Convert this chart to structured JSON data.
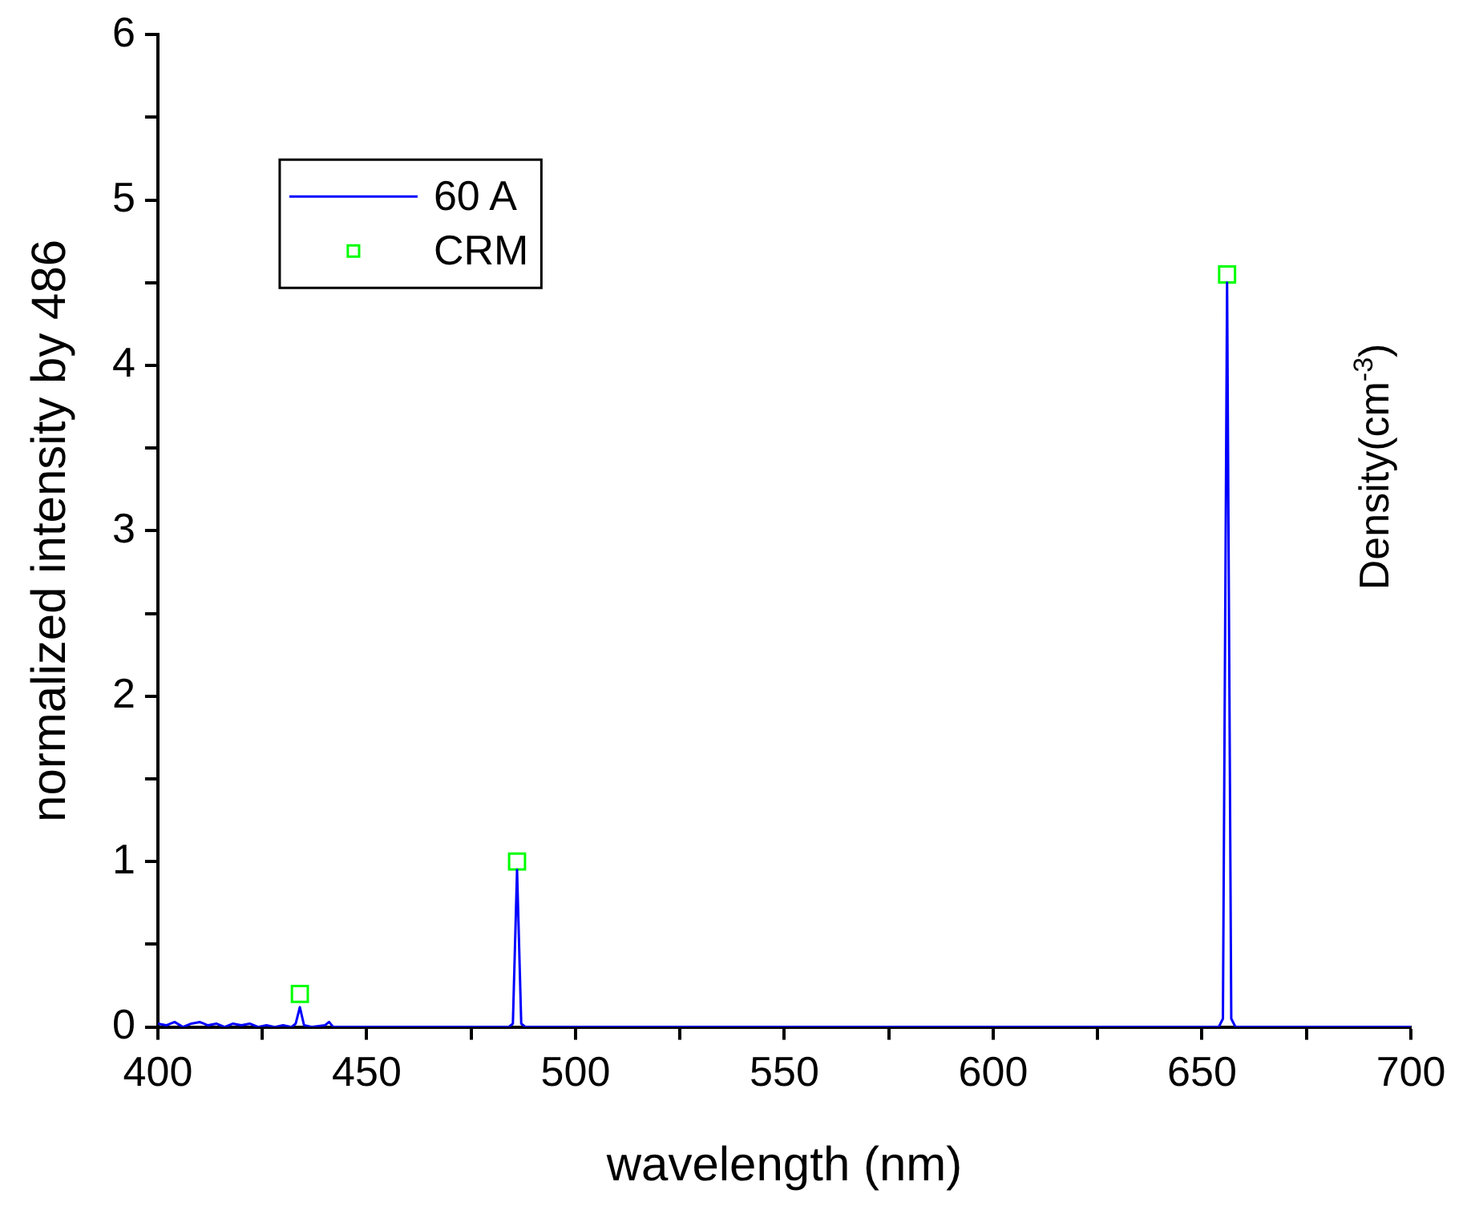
{
  "chart_data": {
    "type": "line",
    "xlabel": "wavelength (nm)",
    "ylabel": "normalized intensity by 486",
    "y2label": "Density(cm$^{-3}$)",
    "xlim": [
      400,
      700
    ],
    "ylim": [
      0,
      6
    ],
    "xticks": [
      400,
      {
        "value": 425,
        "label": null
      },
      450,
      {
        "value": 475,
        "label": null
      },
      500,
      {
        "value": 525,
        "label": null
      },
      550,
      {
        "value": 575,
        "label": null
      },
      600,
      {
        "value": 625,
        "label": null
      },
      650,
      {
        "value": 675,
        "label": null
      },
      700
    ],
    "yticks": [
      0,
      {
        "value": 0.5,
        "label": null
      },
      1,
      {
        "value": 1.5,
        "label": null
      },
      2,
      {
        "value": 2.5,
        "label": null
      },
      3,
      {
        "value": 3.5,
        "label": null
      },
      4,
      {
        "value": 4.5,
        "label": null
      },
      5,
      {
        "value": 5.5,
        "label": null
      },
      6
    ],
    "grid": false,
    "legend": "top left",
    "series": [
      {
        "name": "60 A",
        "color": "#0000ff",
        "marker": "none",
        "line_style": "solid",
        "x": [
          400,
          402,
          404,
          406,
          408,
          410,
          412,
          414,
          416,
          418,
          420,
          422,
          424,
          426,
          428,
          430,
          432,
          433,
          434,
          435,
          437,
          440,
          441,
          442,
          460,
          484,
          485,
          486,
          487,
          488,
          520,
          560,
          600,
          640,
          654,
          655,
          656,
          657,
          658,
          680,
          700
        ],
        "values": [
          0.02,
          0.01,
          0.03,
          0,
          0.02,
          0.03,
          0.01,
          0.02,
          0,
          0.02,
          0.01,
          0.02,
          0,
          0.01,
          0,
          0.01,
          0,
          0.02,
          0.12,
          0.01,
          0,
          0.01,
          0.03,
          0,
          0,
          0,
          0.02,
          0.95,
          0.02,
          0,
          0,
          0,
          0,
          0,
          0,
          0.05,
          4.5,
          0.05,
          0,
          0,
          0
        ]
      },
      {
        "name": "CRM",
        "type": "scatter",
        "color": "#00ff00",
        "marker": "square",
        "x": [
          434,
          486,
          656
        ],
        "values": [
          0.2,
          1.0,
          4.55
        ]
      }
    ]
  }
}
